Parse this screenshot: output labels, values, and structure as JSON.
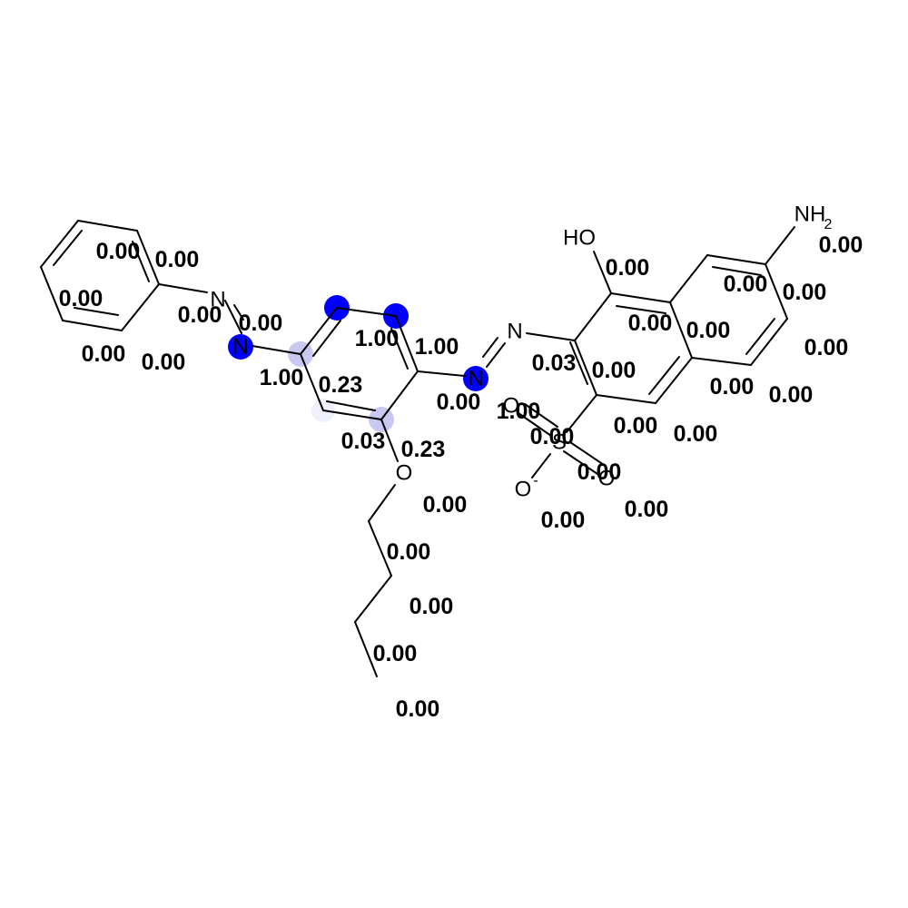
{
  "highlight_colors": {
    "strong": "#0000ff",
    "weak": "#c8c8f0",
    "faint": "#f0f0fc"
  },
  "atoms": {
    "n_azo1_a": "N",
    "n_azo1_b": "N",
    "n_azo2_a": "N",
    "n_azo2_b": "N",
    "hydroxyl": "HO",
    "amine": "NH",
    "amine_sub": "2",
    "ether_o": "O",
    "sulfur": "S",
    "sulfonyl_o1": "O",
    "sulfonyl_o2": "O",
    "sulfonate_o": "O",
    "sulfonate_charge": "-"
  },
  "scores": [
    "0.00",
    "0.00",
    "0.00",
    "0.00",
    "0.00",
    "0.00",
    "0.00",
    "1.00",
    "1.00",
    "1.00",
    "0.23",
    "0.03",
    "0.23",
    "0.00",
    "0.03",
    "0.00",
    "0.00",
    "0.00",
    "0.00",
    "0.00",
    "0.00",
    "0.00",
    "0.00",
    "0.00",
    "0.00",
    "0.00",
    "0.00",
    "0.00",
    "1.00",
    "0.00",
    "0.00",
    "0.00",
    "0.00",
    "0.00",
    "0.00",
    "0.00",
    "0.00",
    "0.00"
  ]
}
